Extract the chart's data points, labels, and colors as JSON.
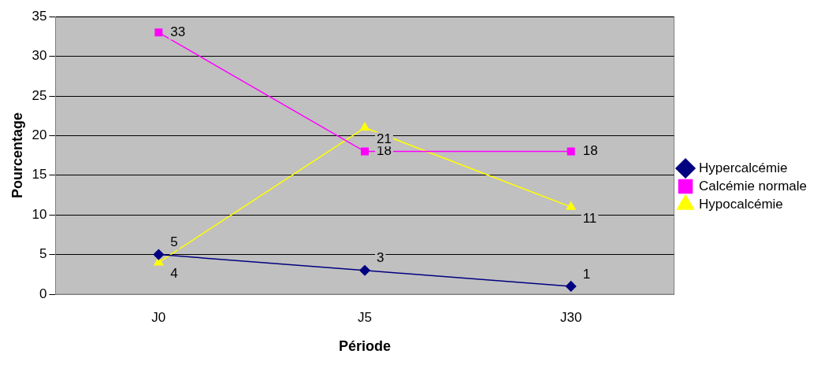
{
  "chart_data": {
    "type": "line",
    "xlabel": "Période",
    "ylabel": "Pourcentage",
    "categories": [
      "J0",
      "J5",
      "J30"
    ],
    "series": [
      {
        "name": "Hypercalcémie",
        "color": "#000080",
        "marker": "diamond",
        "values": [
          5,
          3,
          1
        ]
      },
      {
        "name": "Calcémie normale",
        "color": "#ff00ff",
        "marker": "square",
        "values": [
          33,
          18,
          18
        ]
      },
      {
        "name": "Hypocalcémie",
        "color": "#ffff00",
        "marker": "triangle",
        "values": [
          4,
          21,
          11
        ]
      }
    ],
    "ylim": [
      0,
      35
    ],
    "yticks": [
      0,
      5,
      10,
      15,
      20,
      25,
      30,
      35
    ],
    "grid": "y",
    "legend": "right",
    "data_labels": true
  }
}
